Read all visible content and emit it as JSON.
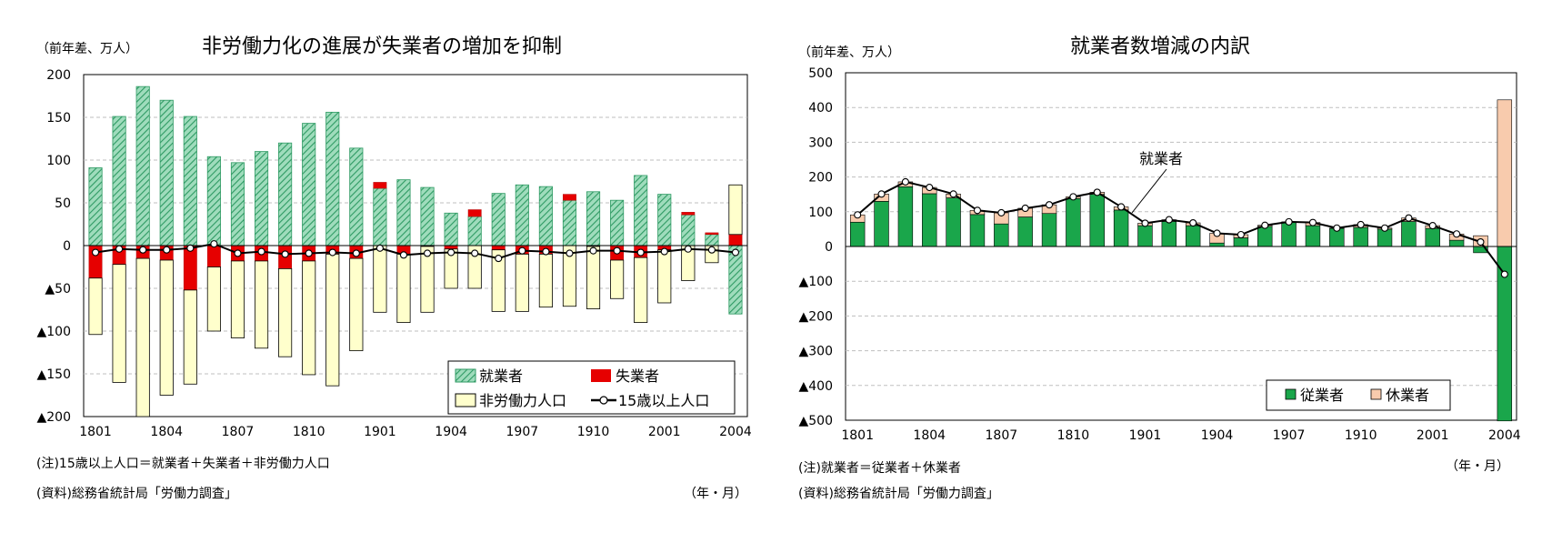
{
  "colors": {
    "employed_green_hatch": "#5fbf8f",
    "unemployed_red": "#e60000",
    "nonlabor_cream": "#ffffcc",
    "employee_green": "#1aa64b",
    "absent_peach": "#f8cbad",
    "line": "#000000",
    "grid": "#bfbfbf"
  },
  "notes": {
    "left_note": "(注)15歳以上人口＝就業者＋失業者＋非労働力人口",
    "left_source": "(資料)総務省統計局「労働力調査」",
    "left_period": "（年・月）",
    "right_note": "(注)就業者＝従業者＋休業者",
    "right_source": "(資料)総務省統計局「労働力調査」",
    "right_period": "（年・月）"
  },
  "chart_data": [
    {
      "type": "bar",
      "title": "非労働力化の進展が失業者の増加を抑制",
      "unit_label": "（前年差、万人）",
      "ylim": [
        -200,
        200
      ],
      "yticks": [
        200,
        150,
        100,
        50,
        0,
        -50,
        -100,
        -150,
        -200
      ],
      "ytick_labels": [
        "200",
        "150",
        "100",
        "50",
        "0",
        "▲50",
        "▲100",
        "▲150",
        "▲200"
      ],
      "xtick_labels": [
        "1801",
        "1804",
        "1807",
        "1810",
        "1901",
        "1904",
        "1907",
        "1910",
        "2001",
        "2004"
      ],
      "grid": true,
      "legend_position": "bottom-right",
      "categories": [
        "1801",
        "1802",
        "1803",
        "1804",
        "1805",
        "1806",
        "1807",
        "1808",
        "1809",
        "1810",
        "1811",
        "1812",
        "1901",
        "1902",
        "1903",
        "1904",
        "1905",
        "1906",
        "1907",
        "1908",
        "1909",
        "1910",
        "1911",
        "1912",
        "2001",
        "2002",
        "2003",
        "2004"
      ],
      "series": [
        {
          "name": "就業者",
          "kind": "bar",
          "values": [
            91,
            151,
            186,
            170,
            151,
            104,
            97,
            110,
            120,
            143,
            156,
            114,
            67,
            77,
            68,
            38,
            34,
            61,
            71,
            69,
            53,
            63,
            53,
            82,
            60,
            36,
            13,
            -80
          ]
        },
        {
          "name": "失業者",
          "kind": "bar",
          "values": [
            -38,
            -22,
            -15,
            -17,
            -52,
            -25,
            -18,
            -18,
            -27,
            -18,
            -10,
            -15,
            7,
            -10,
            -1,
            -4,
            8,
            -5,
            -10,
            -10,
            7,
            -1,
            -17,
            -14,
            -5,
            3,
            2,
            13
          ]
        },
        {
          "name": "非労働力人口",
          "kind": "bar",
          "values": [
            -66,
            -138,
            -185,
            -158,
            -110,
            -75,
            -90,
            -102,
            -103,
            -133,
            -154,
            -108,
            -78,
            -80,
            -77,
            -46,
            -50,
            -72,
            -67,
            -62,
            -71,
            -73,
            -45,
            -76,
            -62,
            -41,
            -20,
            58
          ]
        },
        {
          "name": "15歳以上人口",
          "kind": "line",
          "values": [
            -8,
            -4,
            -5,
            -5,
            -3,
            2,
            -9,
            -7,
            -10,
            -9,
            -8,
            -9,
            -3,
            -11,
            -9,
            -8,
            -9,
            -15,
            -6,
            -7,
            -9,
            -6,
            -6,
            -8,
            -7,
            -4,
            -5,
            -8
          ]
        }
      ]
    },
    {
      "type": "bar",
      "title": "就業者数増減の内訳",
      "unit_label": "（前年差、万人）",
      "ylim": [
        -500,
        500
      ],
      "yticks": [
        500,
        400,
        300,
        200,
        100,
        0,
        -100,
        -200,
        -300,
        -400,
        -500
      ],
      "ytick_labels": [
        "500",
        "400",
        "300",
        "200",
        "100",
        "0",
        "▲100",
        "▲200",
        "▲300",
        "▲400",
        "▲500"
      ],
      "xtick_labels": [
        "1801",
        "1804",
        "1807",
        "1810",
        "1901",
        "1904",
        "1907",
        "1910",
        "2001",
        "2004"
      ],
      "grid": true,
      "legend_position": "bottom-right",
      "annotation": "就業者",
      "categories": [
        "1801",
        "1802",
        "1803",
        "1804",
        "1805",
        "1806",
        "1807",
        "1808",
        "1809",
        "1810",
        "1811",
        "1812",
        "1901",
        "1902",
        "1903",
        "1904",
        "1905",
        "1906",
        "1907",
        "1908",
        "1909",
        "1910",
        "1911",
        "1912",
        "2001",
        "2002",
        "2003",
        "2004"
      ],
      "series": [
        {
          "name": "従業者",
          "kind": "bar",
          "values": [
            70,
            130,
            172,
            152,
            140,
            92,
            65,
            85,
            95,
            138,
            150,
            105,
            60,
            72,
            60,
            10,
            25,
            58,
            70,
            60,
            52,
            55,
            50,
            72,
            52,
            18,
            -18,
            -502
          ]
        },
        {
          "name": "休業者",
          "kind": "bar",
          "values": [
            21,
            21,
            14,
            18,
            11,
            12,
            32,
            25,
            25,
            5,
            6,
            9,
            7,
            5,
            8,
            28,
            9,
            3,
            1,
            9,
            1,
            8,
            3,
            10,
            8,
            18,
            31,
            422
          ]
        },
        {
          "name": "就業者",
          "kind": "line",
          "values": [
            91,
            151,
            186,
            170,
            151,
            104,
            97,
            110,
            120,
            143,
            156,
            114,
            67,
            77,
            68,
            38,
            34,
            61,
            71,
            69,
            53,
            63,
            53,
            82,
            60,
            36,
            13,
            -80
          ]
        }
      ]
    }
  ]
}
